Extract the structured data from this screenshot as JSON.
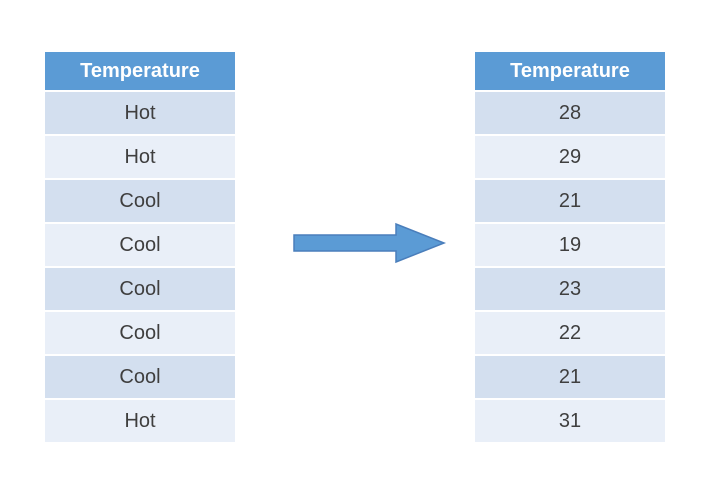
{
  "left_table": {
    "header": "Temperature",
    "rows": [
      "Hot",
      "Hot",
      "Cool",
      "Cool",
      "Cool",
      "Cool",
      "Cool",
      "Hot"
    ]
  },
  "right_table": {
    "header": "Temperature",
    "rows": [
      "28",
      "29",
      "21",
      "19",
      "23",
      "22",
      "21",
      "31"
    ]
  },
  "arrow": {
    "direction": "right"
  },
  "colors": {
    "header_bg": "#5B9BD5",
    "header_text": "#FFFFFF",
    "row_band_a": "#D3DFEF",
    "row_band_b": "#E9EFF8",
    "text": "#3F3F3F",
    "arrow_fill": "#5B9BD5",
    "arrow_stroke": "#4A7EBB"
  }
}
